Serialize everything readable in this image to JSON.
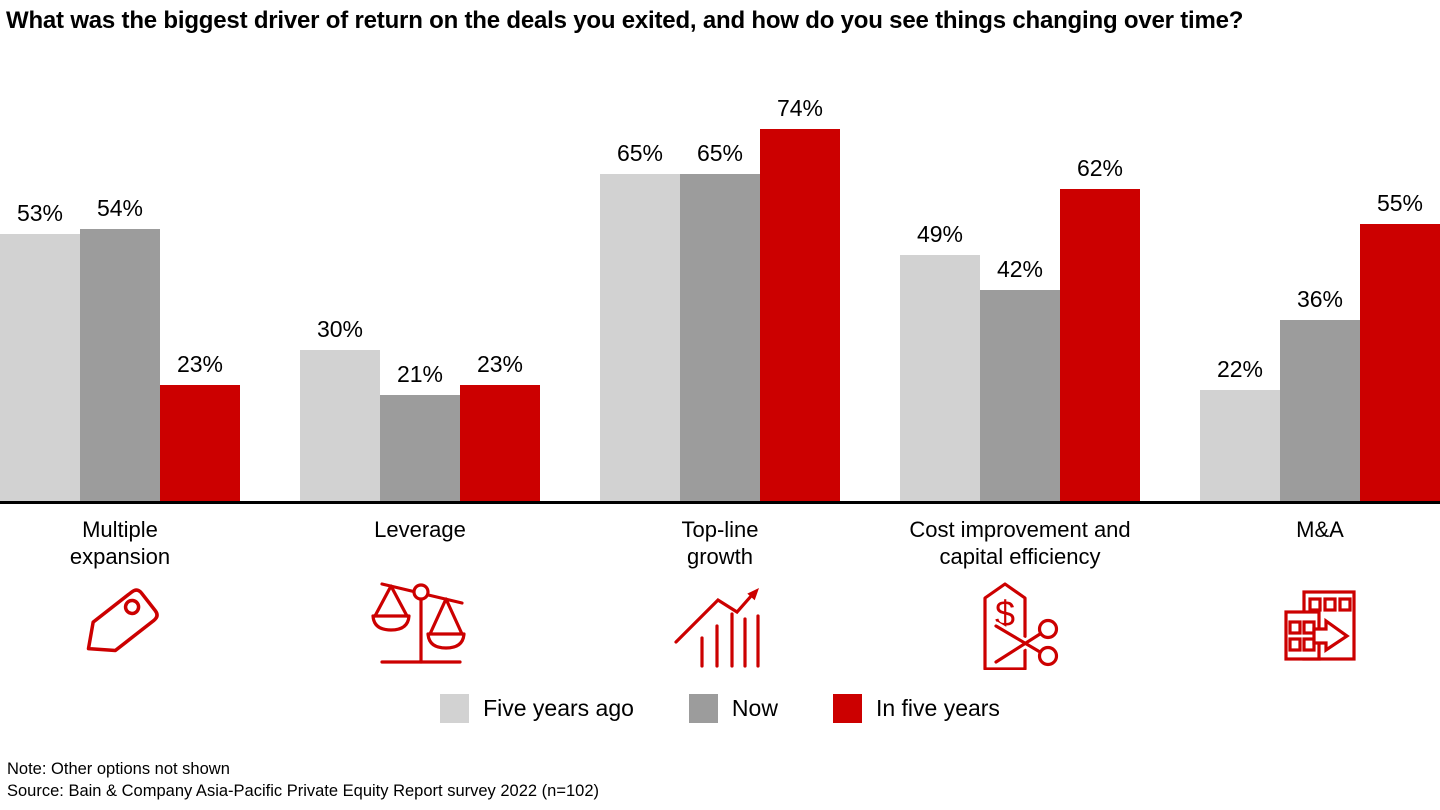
{
  "title": "What was the biggest driver of return on the deals you exited, and how do you see things changing over time?",
  "chart_data": {
    "type": "bar",
    "categories": [
      "Multiple expansion",
      "Leverage",
      "Top-line growth",
      "Cost improvement and capital efficiency",
      "M&A"
    ],
    "category_lines": [
      [
        "Multiple",
        "expansion"
      ],
      [
        "Leverage"
      ],
      [
        "Top-line",
        "growth"
      ],
      [
        "Cost improvement and",
        "capital efficiency"
      ],
      [
        "M&A"
      ]
    ],
    "series": [
      {
        "name": "Five years ago",
        "color": "#d2d2d2",
        "values": [
          53,
          30,
          65,
          49,
          22
        ]
      },
      {
        "name": "Now",
        "color": "#9c9c9c",
        "values": [
          54,
          21,
          65,
          42,
          36
        ]
      },
      {
        "name": "In five years",
        "color": "#cc0000",
        "values": [
          23,
          23,
          74,
          62,
          55
        ]
      }
    ],
    "value_unit": "%",
    "ylim": [
      0,
      100
    ],
    "grid": false,
    "legend_position": "bottom-center",
    "axis_color": "#000000"
  },
  "icons": [
    "price-tag-icon",
    "balance-scale-icon",
    "growth-chart-icon",
    "price-tag-scissors-icon",
    "buildings-merger-icon"
  ],
  "icon_color": "#cc0000",
  "footer": {
    "note": "Note: Other options not shown",
    "source": "Source: Bain & Company Asia-Pacific Private Equity Report survey 2022 (n=102)"
  }
}
